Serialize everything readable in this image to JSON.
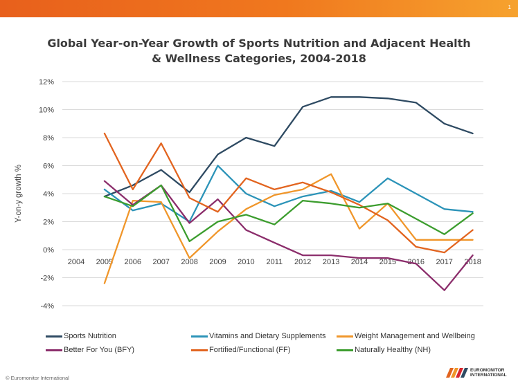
{
  "page_number": "1",
  "footer": "© Euromonitor International",
  "logo": {
    "line1": "EUROMONITOR",
    "line2": "INTERNATIONAL"
  },
  "chart_data": {
    "type": "line",
    "title": "Global Year-on-Year Growth of Sports Nutrition and Adjacent Health & Wellness Categories, 2004-2018",
    "xlabel": "",
    "ylabel": "Y-on-y growth %",
    "categories": [
      "2004",
      "2005",
      "2006",
      "2007",
      "2008",
      "2009",
      "2010",
      "2011",
      "2012",
      "2013",
      "2014",
      "2015",
      "2016",
      "2017",
      "2018"
    ],
    "y_ticks": [
      "12%",
      "10%",
      "8%",
      "6%",
      "4%",
      "2%",
      "0%",
      "-2%",
      "-4%"
    ],
    "ylim": [
      -4,
      12
    ],
    "grid": true,
    "legend_position": "bottom",
    "series": [
      {
        "name": "Sports Nutrition",
        "color": "#2e4a62",
        "values": [
          null,
          3.8,
          4.6,
          5.7,
          4.1,
          6.8,
          8.0,
          7.4,
          10.2,
          10.9,
          10.9,
          10.8,
          10.5,
          9.0,
          8.3
        ]
      },
      {
        "name": "Vitamins and Dietary Supplements",
        "color": "#2b93b8",
        "values": [
          null,
          4.3,
          2.8,
          3.3,
          2.0,
          6.0,
          4.0,
          3.1,
          3.8,
          4.2,
          3.4,
          5.1,
          4.0,
          2.9,
          2.7
        ]
      },
      {
        "name": "Weight Management and Wellbeing",
        "color": "#f0962a",
        "values": [
          null,
          -2.4,
          3.5,
          3.4,
          -0.6,
          1.3,
          2.9,
          3.9,
          4.3,
          5.4,
          1.5,
          3.3,
          0.7,
          0.7,
          0.7
        ]
      },
      {
        "name": "Better For You (BFY)",
        "color": "#8b2d6b",
        "values": [
          null,
          4.9,
          3.2,
          4.6,
          1.9,
          3.6,
          1.4,
          0.5,
          -0.4,
          -0.4,
          -0.6,
          -0.6,
          -1.0,
          -2.9,
          -0.4
        ]
      },
      {
        "name": "Fortified/Functional (FF)",
        "color": "#e2641f",
        "values": [
          null,
          8.3,
          4.3,
          7.6,
          3.7,
          2.7,
          5.1,
          4.3,
          4.8,
          4.1,
          3.2,
          2.1,
          0.2,
          -0.2,
          1.4
        ]
      },
      {
        "name": "Naturally Healthy (NH)",
        "color": "#3c9d2e",
        "values": [
          null,
          3.8,
          3.1,
          4.6,
          0.6,
          2.0,
          2.5,
          1.8,
          3.5,
          3.3,
          3.0,
          3.3,
          2.2,
          1.1,
          2.6
        ]
      }
    ]
  }
}
